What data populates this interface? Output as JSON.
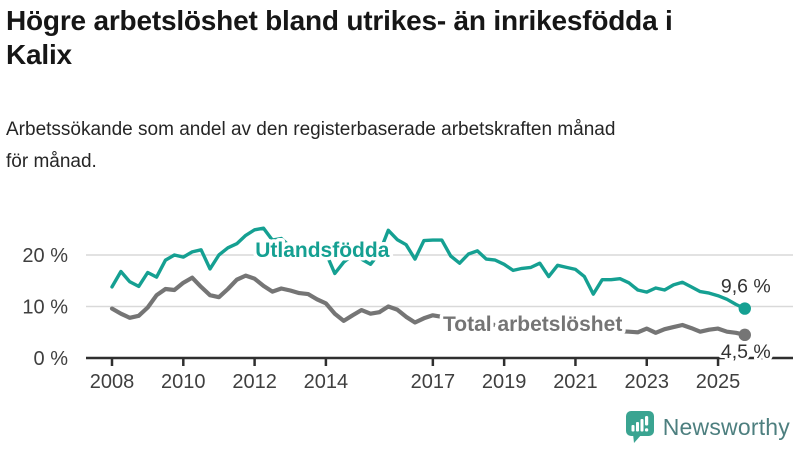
{
  "header": {
    "title_lines": [
      "Högre arbetslöshet bland utrikes- än inrikesfödda i",
      "Kalix"
    ],
    "subtitle_lines": [
      "Arbetssökande som andel av den registerbaserade arbetskraften månad",
      "för månad."
    ]
  },
  "chart_data": {
    "type": "line",
    "title": "Högre arbetslöshet bland utrikes- än inrikesfödda i Kalix",
    "subtitle": "Arbetssökande som andel av den registerbaserade arbetskraften månad för månad.",
    "x_unit": "year (decimal, quarterly estimates read from chart)",
    "x": [
      2008,
      2008.25,
      2008.5,
      2008.75,
      2009,
      2009.25,
      2009.5,
      2009.75,
      2010,
      2010.25,
      2010.5,
      2010.75,
      2011,
      2011.25,
      2011.5,
      2011.75,
      2012,
      2012.25,
      2012.5,
      2012.75,
      2013,
      2013.25,
      2013.5,
      2013.75,
      2014,
      2014.25,
      2014.5,
      2014.75,
      2015,
      2015.25,
      2015.5,
      2015.75,
      2016,
      2016.25,
      2016.5,
      2016.75,
      2017,
      2017.25,
      2017.5,
      2017.75,
      2018,
      2018.25,
      2018.5,
      2018.75,
      2019,
      2019.25,
      2019.5,
      2019.75,
      2020,
      2020.25,
      2020.5,
      2020.75,
      2021,
      2021.25,
      2021.5,
      2021.75,
      2022,
      2022.25,
      2022.5,
      2022.75,
      2023,
      2023.25,
      2023.5,
      2023.75,
      2024,
      2024.25,
      2024.5,
      2024.75,
      2025,
      2025.25,
      2025.5,
      2025.75
    ],
    "series": [
      {
        "name": "Utlandsfödda",
        "color": "#15a092",
        "stroke_width": 3.4,
        "end_label": "9,6 %",
        "end_value": 9.6,
        "values": [
          13.8,
          16.8,
          14.8,
          13.9,
          16.6,
          15.7,
          19,
          20,
          19.6,
          20.6,
          21,
          17.3,
          20,
          21.4,
          22.2,
          23.8,
          24.9,
          25.2,
          22.9,
          23.2,
          21.6,
          22,
          21.6,
          22.2,
          20.4,
          16.4,
          18.6,
          20,
          19.2,
          18.2,
          20.4,
          24.8,
          23,
          22,
          19.2,
          22.8,
          22.9,
          22.9,
          19.8,
          18.4,
          20.2,
          20.8,
          19.2,
          19,
          18.2,
          17,
          17.4,
          17.6,
          18.4,
          15.8,
          18,
          17.6,
          17.2,
          15.8,
          12.4,
          15.2,
          15.2,
          15.4,
          14.6,
          13.2,
          12.8,
          13.6,
          13.2,
          14.2,
          14.7,
          13.8,
          12.9,
          12.6,
          12.1,
          11.4,
          10.4,
          9.6
        ]
      },
      {
        "name": "Total arbetslöshet",
        "color": "#757575",
        "stroke_width": 4.2,
        "end_label": "4,5 %",
        "end_value": 4.5,
        "values": [
          9.6,
          8.6,
          7.8,
          8.2,
          9.8,
          12.2,
          13.4,
          13.2,
          14.6,
          15.6,
          13.8,
          12.2,
          11.8,
          13.4,
          15.2,
          16,
          15.4,
          14,
          12.9,
          13.5,
          13.1,
          12.6,
          12.4,
          11.4,
          10.6,
          8.6,
          7.2,
          8.3,
          9.3,
          8.6,
          8.9,
          10,
          9.4,
          8,
          6.9,
          7.7,
          8.3,
          8,
          7.6,
          7.2,
          7,
          6.8,
          6.6,
          6.4,
          6.3,
          6.2,
          6.1,
          6.3,
          6.6,
          7.4,
          7.6,
          7.2,
          6.8,
          6.4,
          6,
          5.7,
          5.4,
          5.2,
          5.1,
          5,
          5.7,
          4.9,
          5.6,
          6,
          6.4,
          5.8,
          5.1,
          5.5,
          5.7,
          5.1,
          4.9,
          4.5
        ]
      }
    ],
    "series_label_anchors": [
      {
        "x": 2013.9,
        "y": 21.0
      },
      {
        "x": 2019.8,
        "y": 6.6
      }
    ],
    "y_axis": {
      "ticks": [
        {
          "value": 0,
          "label": "0 %"
        },
        {
          "value": 10,
          "label": "10 %"
        },
        {
          "value": 20,
          "label": "20 %"
        }
      ],
      "range": [
        0,
        27
      ]
    },
    "x_axis": {
      "ticks": [
        {
          "value": 2008,
          "label": "2008"
        },
        {
          "value": 2010,
          "label": "2010"
        },
        {
          "value": 2012,
          "label": "2012"
        },
        {
          "value": 2014,
          "label": "2014"
        },
        {
          "value": 2017,
          "label": "2017"
        },
        {
          "value": 2019,
          "label": "2019"
        },
        {
          "value": 2021,
          "label": "2021"
        },
        {
          "value": 2023,
          "label": "2023"
        },
        {
          "value": 2025,
          "label": "2025"
        }
      ],
      "range": [
        2007.3,
        2027.1
      ]
    },
    "grid": "horizontal-only",
    "legend": "inline-labels-on-lines"
  },
  "colors": {
    "accent_teal": "#15a092",
    "line_gray": "#757575",
    "grid": "#d9d9d9",
    "axis": "#2f2f2f",
    "tick_label": "#3f3f3f",
    "value_label": "#333333",
    "logo_icon_teal": "#3aa491",
    "logo_text": "#4d7f7f"
  },
  "logo": {
    "text": "Newsworthy"
  }
}
